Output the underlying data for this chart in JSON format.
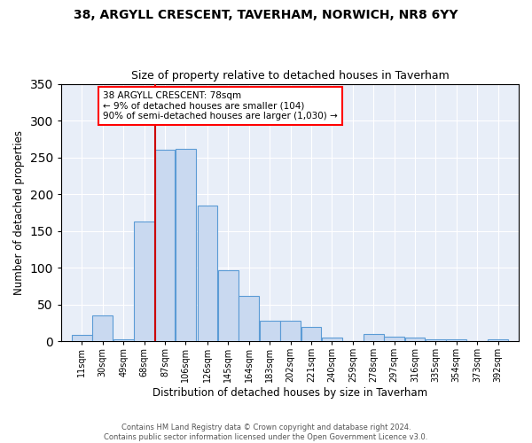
{
  "title1": "38, ARGYLL CRESCENT, TAVERHAM, NORWICH, NR8 6YY",
  "title2": "Size of property relative to detached houses in Taverham",
  "xlabel": "Distribution of detached houses by size in Taverham",
  "ylabel": "Number of detached properties",
  "bin_labels": [
    "11sqm",
    "30sqm",
    "49sqm",
    "68sqm",
    "87sqm",
    "106sqm",
    "126sqm",
    "145sqm",
    "164sqm",
    "183sqm",
    "202sqm",
    "221sqm",
    "240sqm",
    "259sqm",
    "278sqm",
    "297sqm",
    "316sqm",
    "335sqm",
    "354sqm",
    "373sqm",
    "392sqm"
  ],
  "bar_heights": [
    8,
    35,
    3,
    163,
    260,
    262,
    185,
    96,
    62,
    28,
    28,
    20,
    5,
    0,
    10,
    6,
    5,
    2,
    2,
    0,
    3
  ],
  "bar_color": "#c9d9f0",
  "bar_edge_color": "#5b9bd5",
  "vline_x": 78,
  "annotation_text": "38 ARGYLL CRESCENT: 78sqm\n← 9% of detached houses are smaller (104)\n90% of semi-detached houses are larger (1,030) →",
  "annotation_box_color": "white",
  "annotation_box_edge_color": "red",
  "vline_color": "#cc0000",
  "footer1": "Contains HM Land Registry data © Crown copyright and database right 2024.",
  "footer2": "Contains public sector information licensed under the Open Government Licence v3.0.",
  "ylim": [
    0,
    350
  ],
  "yticks": [
    0,
    50,
    100,
    150,
    200,
    250,
    300,
    350
  ],
  "background_color": "#e8eef8",
  "bin_width": 19
}
